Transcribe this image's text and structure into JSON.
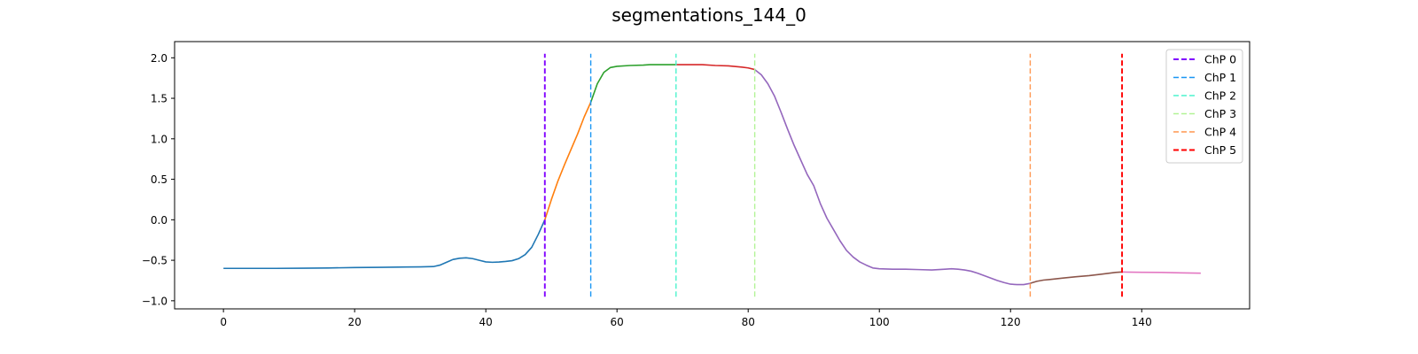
{
  "chart_data": {
    "type": "line",
    "title": "segmentations_144_0",
    "xlabel": "",
    "ylabel": "",
    "xlim": [
      -7.45,
      156.45
    ],
    "ylim": [
      -1.1,
      2.2
    ],
    "xticks": [
      0,
      20,
      40,
      60,
      80,
      100,
      120,
      140
    ],
    "yticks": [
      -1.0,
      -0.5,
      0.0,
      0.5,
      1.0,
      1.5,
      2.0
    ],
    "xtick_labels": [
      "0",
      "20",
      "40",
      "60",
      "80",
      "100",
      "120",
      "140"
    ],
    "ytick_labels": [
      "−1.0",
      "−0.5",
      "0.0",
      "0.5",
      "1.0",
      "1.5",
      "2.0"
    ],
    "grid": false,
    "legend_position": "top-right",
    "segments": [
      {
        "color": "#1f77b4",
        "x": [
          0,
          4,
          8,
          12,
          16,
          20,
          24,
          28,
          30,
          32,
          33,
          34,
          35,
          36,
          37,
          38,
          39,
          40,
          41,
          42,
          43,
          44,
          45,
          46,
          47,
          48,
          49
        ],
        "y": [
          -0.6,
          -0.6,
          -0.6,
          -0.598,
          -0.595,
          -0.59,
          -0.587,
          -0.583,
          -0.582,
          -0.578,
          -0.56,
          -0.525,
          -0.49,
          -0.475,
          -0.47,
          -0.48,
          -0.5,
          -0.52,
          -0.525,
          -0.522,
          -0.515,
          -0.505,
          -0.48,
          -0.43,
          -0.34,
          -0.18,
          0.0
        ]
      },
      {
        "color": "#ff7f0e",
        "x": [
          49,
          50,
          51,
          52,
          53,
          54,
          55,
          56
        ],
        "y": [
          0.0,
          0.25,
          0.48,
          0.68,
          0.87,
          1.06,
          1.27,
          1.45
        ]
      },
      {
        "color": "#2ca02c",
        "x": [
          56,
          57,
          58,
          59,
          60,
          62,
          64,
          65,
          67,
          69
        ],
        "y": [
          1.45,
          1.68,
          1.82,
          1.88,
          1.895,
          1.905,
          1.91,
          1.915,
          1.915,
          1.915
        ]
      },
      {
        "color": "#d62728",
        "x": [
          69,
          71,
          73,
          75,
          77,
          79,
          80,
          81
        ],
        "y": [
          1.915,
          1.915,
          1.915,
          1.905,
          1.9,
          1.885,
          1.875,
          1.855
        ]
      },
      {
        "color": "#9467bd",
        "x": [
          81,
          82,
          83,
          84,
          85,
          86,
          87,
          88,
          89,
          90,
          91,
          92,
          93,
          94,
          95,
          96,
          97,
          98,
          99,
          100,
          102,
          104,
          106,
          108,
          110,
          111,
          112,
          113,
          114,
          115,
          116,
          117,
          118,
          119,
          120,
          121,
          122,
          123
        ],
        "y": [
          1.855,
          1.79,
          1.68,
          1.53,
          1.33,
          1.12,
          0.92,
          0.74,
          0.56,
          0.42,
          0.2,
          0.02,
          -0.12,
          -0.26,
          -0.38,
          -0.46,
          -0.52,
          -0.56,
          -0.595,
          -0.605,
          -0.61,
          -0.61,
          -0.615,
          -0.62,
          -0.61,
          -0.605,
          -0.61,
          -0.62,
          -0.635,
          -0.66,
          -0.69,
          -0.72,
          -0.75,
          -0.775,
          -0.795,
          -0.8,
          -0.8,
          -0.785
        ]
      },
      {
        "color": "#8c564b",
        "x": [
          123,
          124,
          125,
          126,
          128,
          130,
          132,
          134,
          136,
          137
        ],
        "y": [
          -0.785,
          -0.76,
          -0.745,
          -0.737,
          -0.72,
          -0.703,
          -0.69,
          -0.67,
          -0.65,
          -0.645
        ]
      },
      {
        "color": "#e377c2",
        "x": [
          137,
          140,
          143,
          146,
          149
        ],
        "y": [
          -0.645,
          -0.648,
          -0.65,
          -0.655,
          -0.66
        ]
      }
    ],
    "change_points": [
      {
        "name": "ChP 0",
        "x": 49,
        "color": "#8000ff",
        "width": 1.9
      },
      {
        "name": "ChP 1",
        "x": 56,
        "color": "#1996f3",
        "width": 1.4
      },
      {
        "name": "ChP 2",
        "x": 69,
        "color": "#4df3ce",
        "width": 1.4
      },
      {
        "name": "ChP 3",
        "x": 81,
        "color": "#b2f396",
        "width": 1.4
      },
      {
        "name": "ChP 4",
        "x": 123,
        "color": "#ff964f",
        "width": 1.4
      },
      {
        "name": "ChP 5",
        "x": 137,
        "color": "#ff0000",
        "width": 1.9
      }
    ],
    "vline_ylim": [
      -0.95,
      2.05
    ]
  }
}
